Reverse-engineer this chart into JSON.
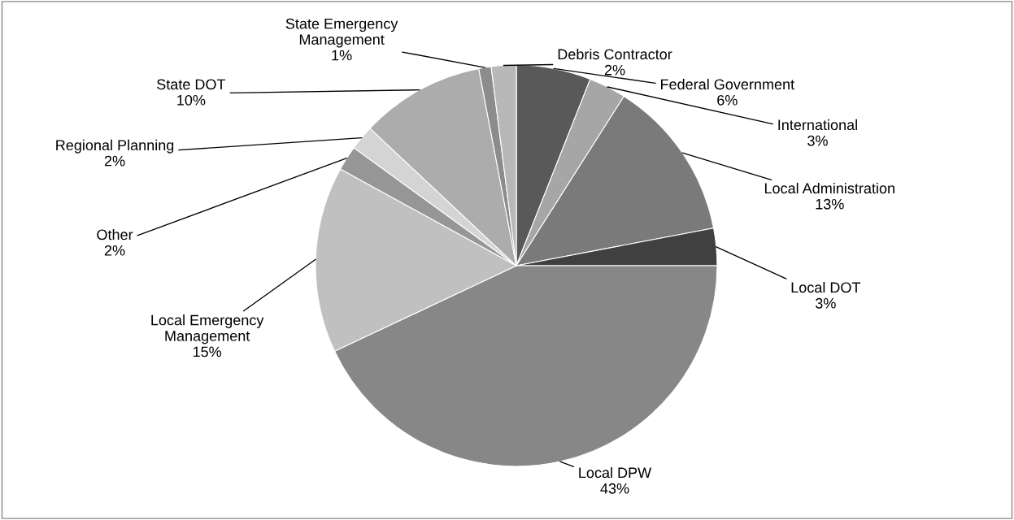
{
  "chart_data": {
    "type": "pie",
    "categories": [
      "Federal Government",
      "International",
      "Local Administration",
      "Local DOT",
      "Local DPW",
      "Local Emergency\nManagement",
      "Other",
      "Regional Planning",
      "State DOT",
      "State Emergency\nManagement",
      "Debris Contractor"
    ],
    "values": [
      6,
      3,
      13,
      3,
      43,
      15,
      2,
      2,
      10,
      1,
      2
    ],
    "value_labels": [
      "6%",
      "3%",
      "13%",
      "3%",
      "43%",
      "15%",
      "2%",
      "2%",
      "10%",
      "1%",
      "2%"
    ],
    "colors": [
      "#595959",
      "#a6a6a6",
      "#7a7a7a",
      "#404040",
      "#878787",
      "#c0c0c0",
      "#969696",
      "#d4d4d4",
      "#acacac",
      "#8c8c8c",
      "#b8b8b8"
    ],
    "legend": false
  }
}
